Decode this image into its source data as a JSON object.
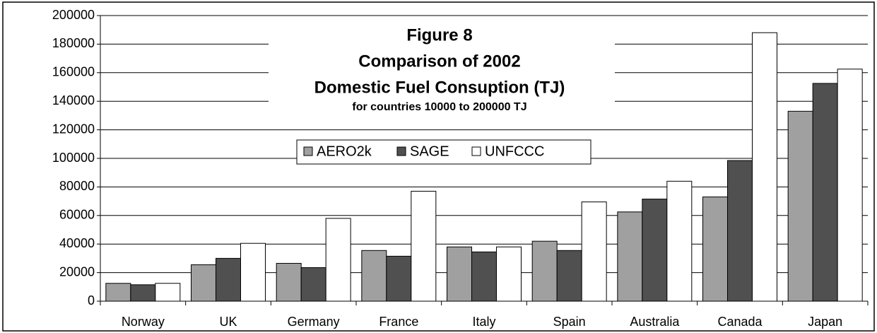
{
  "chart_data": {
    "type": "bar",
    "title": [
      "Figure 8",
      "Comparison of 2002",
      "Domestic Fuel Consuption (TJ)"
    ],
    "subtitle": "for countries 10000 to 200000 TJ",
    "categories": [
      "Norway",
      "UK",
      "Germany",
      "France",
      "Italy",
      "Spain",
      "Australia",
      "Canada",
      "Japan"
    ],
    "series": [
      {
        "name": "AERO2k",
        "color": "#a0a0a0",
        "values": [
          12500,
          25500,
          26500,
          35500,
          38000,
          42000,
          62500,
          73000,
          133000
        ]
      },
      {
        "name": "SAGE",
        "color": "#505050",
        "values": [
          11500,
          30000,
          23500,
          31500,
          34500,
          35500,
          71500,
          98500,
          152500
        ]
      },
      {
        "name": "UNFCCC",
        "color": "#ffffff",
        "values": [
          12500,
          40500,
          58000,
          77000,
          38000,
          69500,
          84000,
          188000,
          162500
        ]
      }
    ],
    "ylim": [
      0,
      200000
    ],
    "yticks": [
      0,
      20000,
      40000,
      60000,
      80000,
      100000,
      120000,
      140000,
      160000,
      180000,
      200000
    ],
    "grid": true
  }
}
